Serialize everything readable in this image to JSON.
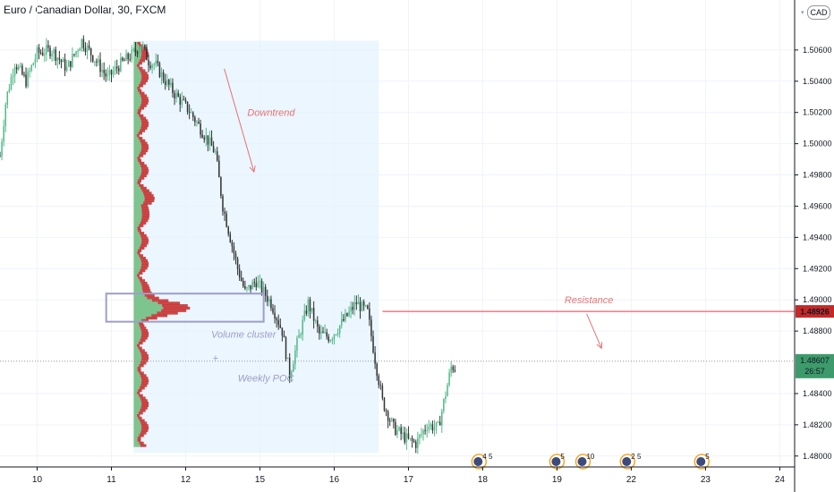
{
  "header": {
    "symbol_title": "Euro / Canadian Dollar, 30, FXCM",
    "currency_badge": "CAD"
  },
  "chart_data": {
    "type": "candlestick",
    "symbol": "Euro / Canadian Dollar",
    "interval": "30",
    "source": "FXCM",
    "currency": "CAD",
    "y_ticks": [
      "1.50600",
      "1.50400",
      "1.50200",
      "1.50000",
      "1.49800",
      "1.49600",
      "1.49400",
      "1.49200",
      "1.49000",
      "1.48800",
      "1.48400",
      "1.48200",
      "1.48000"
    ],
    "ylim": [
      1.4793,
      1.5092
    ],
    "x_ticks": [
      {
        "label": "10",
        "t": 0.5
      },
      {
        "label": "11",
        "t": 1.5
      },
      {
        "label": "12",
        "t": 2.5
      },
      {
        "label": "15",
        "t": 3.5
      },
      {
        "label": "16",
        "t": 4.5
      },
      {
        "label": "17",
        "t": 5.5
      },
      {
        "label": "18",
        "t": 6.5
      },
      {
        "label": "19",
        "t": 7.5
      },
      {
        "label": "22",
        "t": 8.5
      },
      {
        "label": "23",
        "t": 9.5
      },
      {
        "label": "24",
        "t": 10.5
      }
    ],
    "xlim": [
      0,
      10.7
    ],
    "price_path": [
      [
        0.0,
        1.4992
      ],
      [
        0.08,
        1.5028
      ],
      [
        0.2,
        1.5052
      ],
      [
        0.35,
        1.504
      ],
      [
        0.5,
        1.5058
      ],
      [
        0.7,
        1.506
      ],
      [
        0.9,
        1.5048
      ],
      [
        1.1,
        1.5066
      ],
      [
        1.25,
        1.5056
      ],
      [
        1.45,
        1.5042
      ],
      [
        1.6,
        1.505
      ],
      [
        1.8,
        1.5058
      ],
      [
        1.9,
        1.5064
      ],
      [
        2.0,
        1.5053
      ],
      [
        2.1,
        1.505
      ],
      [
        2.2,
        1.5042
      ],
      [
        2.35,
        1.5032
      ],
      [
        2.55,
        1.5021
      ],
      [
        2.75,
        1.5006
      ],
      [
        2.9,
        1.4994
      ],
      [
        3.0,
        1.496
      ],
      [
        3.1,
        1.494
      ],
      [
        3.2,
        1.492
      ],
      [
        3.3,
        1.4905
      ],
      [
        3.45,
        1.4912
      ],
      [
        3.55,
        1.4905
      ],
      [
        3.65,
        1.4898
      ],
      [
        3.8,
        1.488
      ],
      [
        3.9,
        1.4852
      ],
      [
        4.0,
        1.4872
      ],
      [
        4.15,
        1.4898
      ],
      [
        4.3,
        1.4878
      ],
      [
        4.45,
        1.4876
      ],
      [
        4.6,
        1.4885
      ],
      [
        4.8,
        1.4898
      ],
      [
        4.95,
        1.4892
      ],
      [
        5.05,
        1.4862
      ],
      [
        5.15,
        1.4835
      ],
      [
        5.3,
        1.4818
      ],
      [
        5.5,
        1.481
      ],
      [
        5.6,
        1.4808
      ],
      [
        5.75,
        1.482
      ],
      [
        5.9,
        1.4818
      ],
      [
        6.0,
        1.484
      ],
      [
        6.08,
        1.4858
      ],
      [
        6.15,
        1.4855
      ]
    ],
    "last_price": "1.48607",
    "countdown": "26:57",
    "volume_profile": {
      "price_range": [
        1.4802,
        1.5066
      ],
      "rows": [
        {
          "price": 1.4904,
          "buy": 55,
          "sell": 72
        },
        {
          "price": 1.49,
          "buy": 56,
          "sell": 75
        },
        {
          "price": 1.4896,
          "buy": 52,
          "sell": 60
        },
        {
          "price": 1.4892,
          "buy": 48,
          "sell": 55
        },
        {
          "price": 1.4888,
          "buy": 46,
          "sell": 50
        },
        {
          "price": 1.4884,
          "buy": 42,
          "sell": 40
        }
      ]
    },
    "annotations": [
      {
        "text": "Downtrend",
        "type": "label"
      },
      {
        "text": "Resistance",
        "type": "label"
      },
      {
        "text": "Volume cluster",
        "type": "label"
      },
      {
        "text": "+",
        "type": "label"
      },
      {
        "text": "Weekly POC",
        "type": "label"
      }
    ],
    "resistance_level": "1.48926",
    "resistance_value": 1.48926,
    "last_price_value": 1.48607,
    "events": [
      {
        "label": "4 5",
        "t": 6.45
      },
      {
        "label": "5",
        "t": 7.5
      },
      {
        "label": "10",
        "t": 7.85
      },
      {
        "label": "2 5",
        "t": 8.45
      },
      {
        "label": "5",
        "t": 9.45
      }
    ],
    "colors": {
      "up": "#53b987",
      "down": "#333333",
      "resistance": "#f23645",
      "annotation_red": "#e57373",
      "annotation_purple": "#9e9ec8",
      "profile_box": "#e3f2fd",
      "profile_buy": "#7ec48f",
      "profile_sell": "#c62828",
      "last_price": "#4caf50"
    }
  }
}
